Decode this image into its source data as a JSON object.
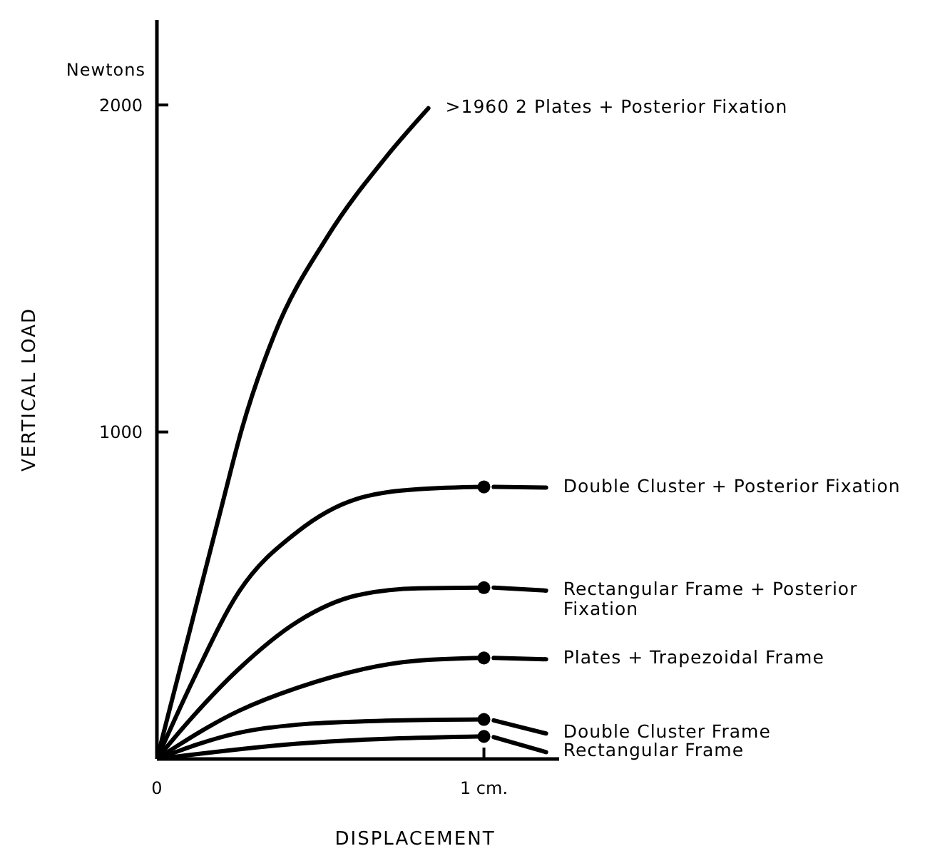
{
  "chart_data": {
    "type": "line",
    "xlabel": "DISPLACEMENT",
    "ylabel": "VERTICAL LOAD",
    "annotations": [
      "Newtons"
    ],
    "xlim": [
      0,
      1.23
    ],
    "xticks": [
      {
        "value": 0,
        "label": "0"
      },
      {
        "value": 1,
        "label": "1 cm."
      }
    ],
    "ylim": [
      0,
      2260
    ],
    "yticks": [
      1000,
      2000
    ],
    "line_style": "solid",
    "series": [
      {
        "name": ">1960 2 Plates + Posterior Fixation",
        "color": "#000000",
        "x": [
          0,
          0.1,
          0.2,
          0.26,
          0.36,
          0.52,
          0.7,
          0.83
        ],
        "values": [
          0,
          390,
          780,
          1010,
          1300,
          1595,
          1840,
          1990
        ]
      },
      {
        "name": "Double Cluster + Posterior Fixation",
        "color": "#000000",
        "x": [
          0,
          0.11,
          0.25,
          0.43,
          0.61,
          0.8,
          1.0,
          1.015,
          1.03,
          1.19
        ],
        "values": [
          0,
          240,
          510,
          695,
          795,
          825,
          832,
          null,
          832,
          830
        ]
      },
      {
        "name": "Rectangular Frame + Posterior Fixation",
        "color": "#000000",
        "x": [
          0,
          0.11,
          0.25,
          0.43,
          0.61,
          0.8,
          1.0,
          1.015,
          1.03,
          1.19
        ],
        "values": [
          0,
          130,
          275,
          420,
          500,
          522,
          524,
          null,
          524,
          515
        ]
      },
      {
        "name": "Plates + Trapezoidal Frame",
        "color": "#000000",
        "x": [
          0,
          0.25,
          0.43,
          0.79,
          1.0,
          1.015,
          1.03,
          1.19
        ],
        "values": [
          0,
          147,
          218,
          300,
          309,
          null,
          309,
          305
        ]
      },
      {
        "name": "Double Cluster Frame",
        "color": "#000000",
        "x": [
          0,
          0.25,
          0.43,
          0.7,
          1.0,
          1.015,
          1.03,
          1.19
        ],
        "values": [
          0,
          80,
          105,
          117,
          121,
          null,
          118,
          78
        ]
      },
      {
        "name": "Rectangular Frame",
        "color": "#000000",
        "x": [
          0,
          0.43,
          1.0,
          1.015,
          1.03,
          1.19
        ],
        "values": [
          0,
          47,
          69,
          null,
          67,
          21
        ]
      },
      {
        "type": "scatter",
        "marker": "circle",
        "color": "#000000",
        "x": [
          1,
          1,
          1,
          1,
          1
        ],
        "values": [
          832,
          524,
          309,
          121,
          69
        ]
      }
    ]
  }
}
